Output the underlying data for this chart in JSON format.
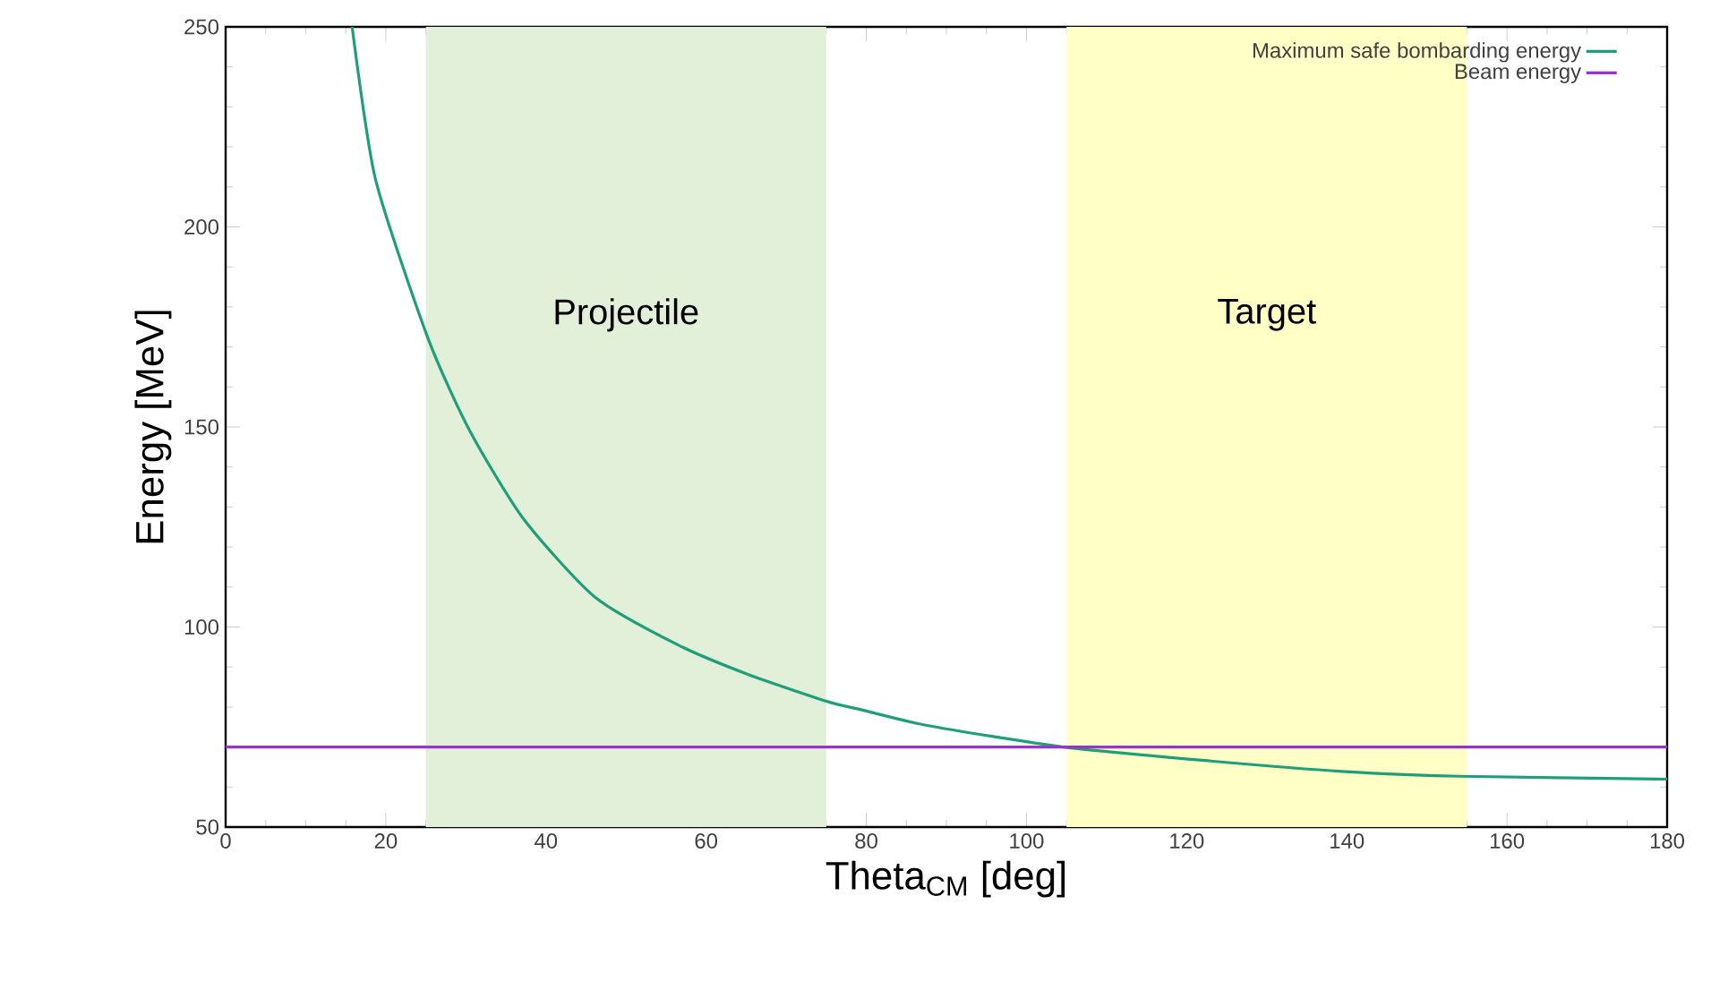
{
  "chart_data": {
    "type": "line",
    "xlabel": "Theta$_{CM}$ [deg]",
    "ylabel": "Energy [MeV]",
    "xlim": [
      0,
      180
    ],
    "ylim": [
      50,
      250
    ],
    "xticks": [
      0,
      20,
      40,
      60,
      80,
      100,
      120,
      140,
      160,
      180
    ],
    "yticks": [
      50,
      100,
      150,
      200,
      250
    ],
    "series": [
      {
        "name": "Maximum safe bombarding energy",
        "color": "#1f9e7a",
        "x": [
          15.8,
          18.7,
          25.3,
          30.5,
          37.2,
          46.1,
          56.4,
          65.3,
          75.1,
          79,
          87.6,
          104.6,
          123,
          139.4,
          154.2,
          178.7,
          180
        ],
        "values": [
          250,
          212,
          172,
          149,
          127,
          107.5,
          95.6,
          88.1,
          81.4,
          79.5,
          75.4,
          70,
          66.5,
          63.9,
          62.7,
          62,
          62
        ]
      },
      {
        "name": "Beam energy",
        "color": "#9933cc",
        "x": [
          0,
          180
        ],
        "values": [
          70,
          70
        ]
      }
    ],
    "bands": [
      {
        "axis": "x",
        "from": 25,
        "to": 75,
        "label": "Projectile",
        "color": "#e2efd9"
      },
      {
        "axis": "x",
        "from": 105,
        "to": 155,
        "label": "Target",
        "color": "#ffffc6"
      }
    ],
    "legend": "top right",
    "grid": false,
    "marker": "none",
    "line_style": "solid"
  }
}
